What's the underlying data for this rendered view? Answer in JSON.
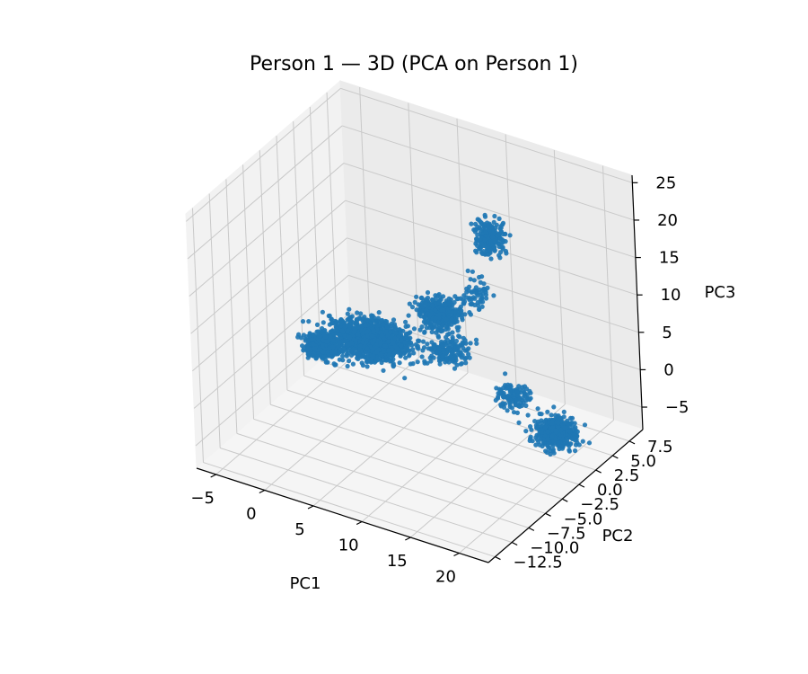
{
  "chart_data": {
    "type": "scatter",
    "projection": "3d",
    "title": "Person 1 — 3D (PCA on Person 1)",
    "xlabel": "PC1",
    "ylabel": "PC2",
    "zlabel": "PC3",
    "xlim": [
      -7,
      23
    ],
    "ylim": [
      -13.5,
      9.5
    ],
    "zlim": [
      -8,
      26
    ],
    "xticks": [
      -5,
      0,
      5,
      10,
      15,
      20
    ],
    "yticks": [
      -12.5,
      -10.0,
      -7.5,
      -5.0,
      -2.5,
      0.0,
      2.5,
      5.0,
      7.5
    ],
    "zticks": [
      -5,
      0,
      5,
      10,
      15,
      20,
      25
    ],
    "xtick_labels": [
      "−5",
      "0",
      "5",
      "10",
      "15",
      "20"
    ],
    "ytick_labels": [
      "−12.5",
      "−10.0",
      "−7.5",
      "−5.0",
      "−2.5",
      "0.0",
      "2.5",
      "5.0",
      "7.5"
    ],
    "ztick_labels": [
      "−5",
      "0",
      "5",
      "10",
      "15",
      "20",
      "25"
    ],
    "grid": true,
    "marker_color": "#1f77b4",
    "pane_color": "#f2f2f2",
    "clusters": [
      {
        "center": [
          2.0,
          0.0,
          2.5
        ],
        "spread": [
          3.5,
          2.0,
          1.6
        ],
        "count": 1400
      },
      {
        "center": [
          -3.5,
          0.5,
          -1.0
        ],
        "spread": [
          1.5,
          1.2,
          1.0
        ],
        "count": 500
      },
      {
        "center": [
          8.5,
          1.0,
          8.0
        ],
        "spread": [
          1.8,
          1.5,
          1.6
        ],
        "count": 400
      },
      {
        "center": [
          11.0,
          -1.5,
          6.0
        ],
        "spread": [
          1.8,
          1.5,
          1.6
        ],
        "count": 180
      },
      {
        "center": [
          14.5,
          0.5,
          21.0
        ],
        "spread": [
          1.4,
          1.2,
          2.0
        ],
        "count": 220
      },
      {
        "center": [
          13.0,
          0.0,
          13.0
        ],
        "spread": [
          1.2,
          1.0,
          2.5
        ],
        "count": 60
      },
      {
        "center": [
          20.5,
          0.5,
          -2.5
        ],
        "spread": [
          1.8,
          1.6,
          1.4
        ],
        "count": 450
      },
      {
        "center": [
          16.5,
          0.0,
          1.0
        ],
        "spread": [
          1.6,
          1.4,
          1.4
        ],
        "count": 120
      }
    ]
  }
}
